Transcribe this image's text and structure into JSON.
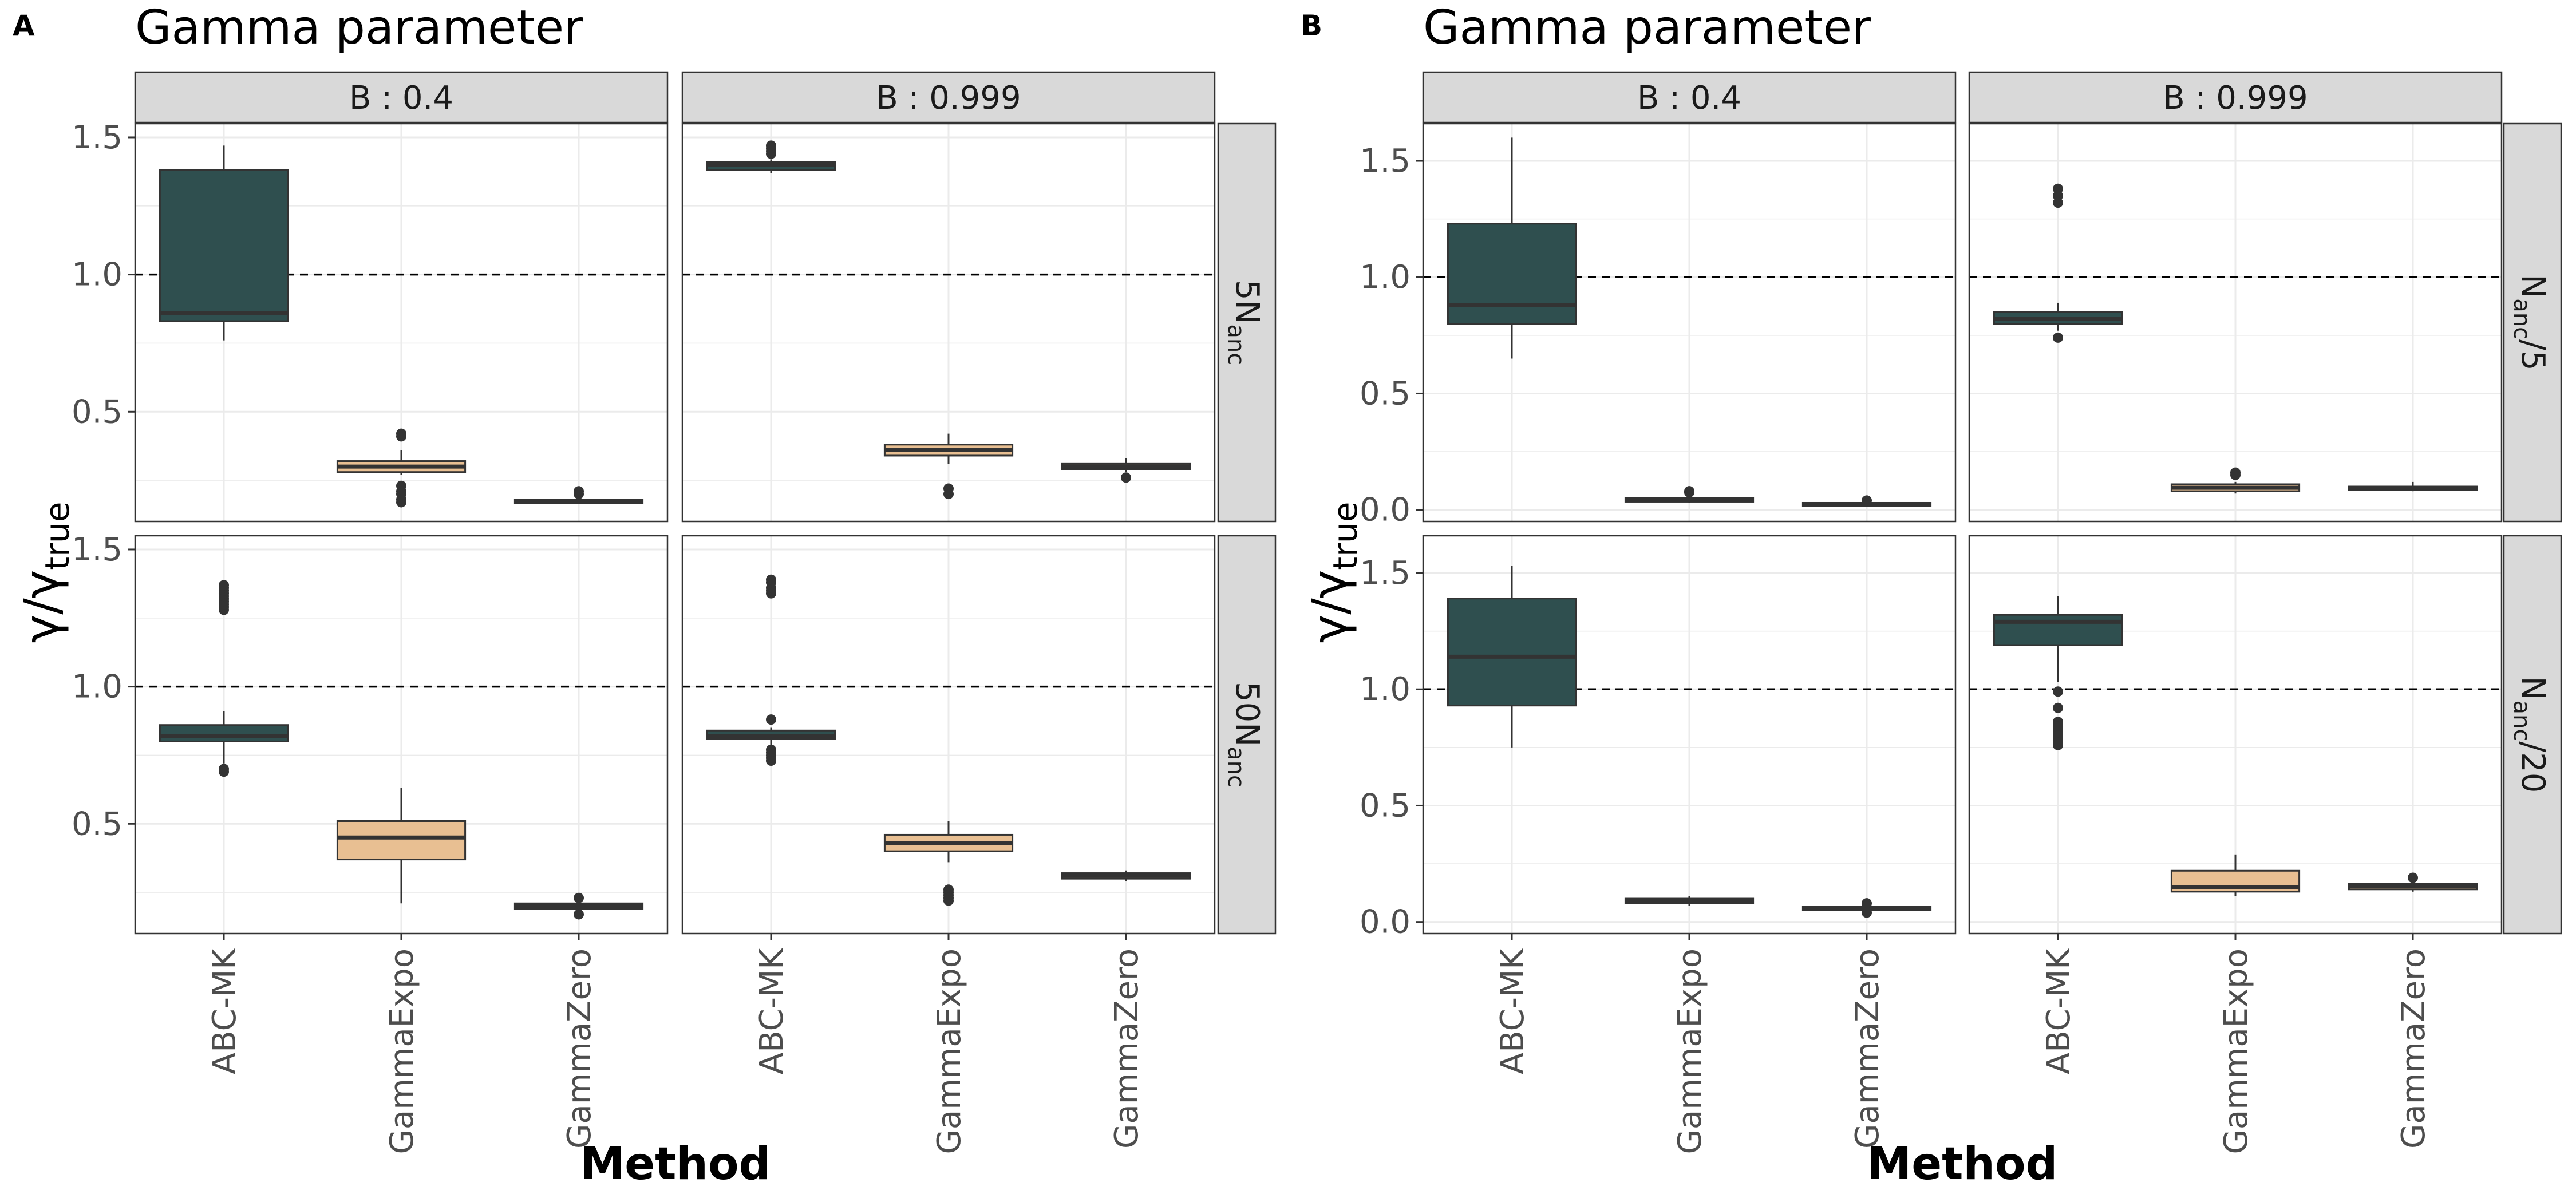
{
  "colors": {
    "abc": "#2F4F4F",
    "expo": "#E8BF92",
    "zero": "#E8BF92",
    "strip_bg": "#D9D9D9",
    "grid": "#EBEBEB",
    "border": "#333333"
  },
  "chart_data": [
    {
      "panel_label": "A",
      "title": "Gamma parameter",
      "type": "boxplot",
      "xlabel": "Method",
      "ylabel": {
        "main": "γ/γ",
        "sub": "true"
      },
      "categories": [
        "ABC-MK",
        "GammaExpo",
        "GammaZero"
      ],
      "columns": [
        "B : 0.4",
        "B : 0.999"
      ],
      "rows": [
        {
          "label": "5N",
          "sub": "anc"
        },
        {
          "label": "50N",
          "sub": "anc"
        }
      ],
      "ylim": [
        0.1,
        1.55
      ],
      "yticks": [
        0.5,
        1.0,
        1.5
      ],
      "ytick_labels": [
        "0.5",
        "1.0",
        "1.5"
      ],
      "reference_line": 1.0,
      "facets": [
        {
          "col": 0,
          "row": 0,
          "boxes": [
            {
              "method": "ABC-MK",
              "q1": 0.83,
              "median": 0.86,
              "q3": 1.38,
              "wlo": 0.76,
              "whi": 1.47,
              "outliers": []
            },
            {
              "method": "GammaExpo",
              "q1": 0.28,
              "median": 0.3,
              "q3": 0.32,
              "wlo": 0.27,
              "whi": 0.36,
              "outliers": [
                0.41,
                0.42,
                0.23,
                0.21,
                0.2,
                0.18,
                0.17
              ]
            },
            {
              "method": "GammaZero",
              "q1": 0.17,
              "median": 0.175,
              "q3": 0.18,
              "wlo": 0.165,
              "whi": 0.19,
              "outliers": [
                0.2,
                0.21
              ]
            }
          ]
        },
        {
          "col": 1,
          "row": 0,
          "boxes": [
            {
              "method": "ABC-MK",
              "q1": 1.38,
              "median": 1.4,
              "q3": 1.41,
              "wlo": 1.37,
              "whi": 1.42,
              "outliers": [
                1.44,
                1.45,
                1.46,
                1.47
              ]
            },
            {
              "method": "GammaExpo",
              "q1": 0.34,
              "median": 0.36,
              "q3": 0.38,
              "wlo": 0.31,
              "whi": 0.42,
              "outliers": [
                0.22,
                0.2
              ]
            },
            {
              "method": "GammaZero",
              "q1": 0.29,
              "median": 0.3,
              "q3": 0.31,
              "wlo": 0.28,
              "whi": 0.33,
              "outliers": [
                0.26
              ]
            }
          ]
        },
        {
          "col": 0,
          "row": 1,
          "boxes": [
            {
              "method": "ABC-MK",
              "q1": 0.8,
              "median": 0.82,
              "q3": 0.86,
              "wlo": 0.72,
              "whi": 0.91,
              "outliers": [
                1.28,
                1.29,
                1.3,
                1.31,
                1.32,
                1.33,
                1.34,
                1.35,
                1.36,
                1.37,
                0.7,
                0.69
              ]
            },
            {
              "method": "GammaExpo",
              "q1": 0.37,
              "median": 0.45,
              "q3": 0.51,
              "wlo": 0.21,
              "whi": 0.63,
              "outliers": []
            },
            {
              "method": "GammaZero",
              "q1": 0.19,
              "median": 0.2,
              "q3": 0.21,
              "wlo": 0.185,
              "whi": 0.22,
              "outliers": [
                0.17,
                0.23
              ]
            }
          ]
        },
        {
          "col": 1,
          "row": 1,
          "boxes": [
            {
              "method": "ABC-MK",
              "q1": 0.81,
              "median": 0.82,
              "q3": 0.84,
              "wlo": 0.78,
              "whi": 0.85,
              "outliers": [
                1.34,
                1.35,
                1.36,
                1.38,
                1.39,
                0.88,
                0.77,
                0.76,
                0.75,
                0.74,
                0.73
              ]
            },
            {
              "method": "GammaExpo",
              "q1": 0.4,
              "median": 0.43,
              "q3": 0.46,
              "wlo": 0.36,
              "whi": 0.51,
              "outliers": [
                0.26,
                0.25,
                0.24,
                0.23,
                0.22
              ]
            },
            {
              "method": "GammaZero",
              "q1": 0.3,
              "median": 0.31,
              "q3": 0.32,
              "wlo": 0.29,
              "whi": 0.33,
              "outliers": []
            }
          ]
        }
      ]
    },
    {
      "panel_label": "B",
      "title": "Gamma parameter",
      "type": "boxplot",
      "xlabel": "Method",
      "ylabel": {
        "main": "γ/γ",
        "sub": "true"
      },
      "categories": [
        "ABC-MK",
        "GammaExpo",
        "GammaZero"
      ],
      "columns": [
        "B : 0.4",
        "B : 0.999"
      ],
      "rows": [
        {
          "label": "N",
          "sub": "anc",
          "suffix": "/5"
        },
        {
          "label": "N",
          "sub": "anc",
          "suffix": "/20"
        }
      ],
      "ylim": [
        -0.05,
        1.66
      ],
      "yticks": [
        0.0,
        0.5,
        1.0,
        1.5
      ],
      "ytick_labels": [
        "0.0",
        "0.5",
        "1.0",
        "1.5"
      ],
      "reference_line": 1.0,
      "facets": [
        {
          "col": 0,
          "row": 0,
          "boxes": [
            {
              "method": "ABC-MK",
              "q1": 0.8,
              "median": 0.88,
              "q3": 1.23,
              "wlo": 0.65,
              "whi": 1.6,
              "outliers": []
            },
            {
              "method": "GammaExpo",
              "q1": 0.035,
              "median": 0.045,
              "q3": 0.05,
              "wlo": 0.03,
              "whi": 0.06,
              "outliers": [
                0.075,
                0.08
              ]
            },
            {
              "method": "GammaZero",
              "q1": 0.02,
              "median": 0.025,
              "q3": 0.03,
              "wlo": 0.015,
              "whi": 0.035,
              "outliers": [
                0.04
              ]
            }
          ]
        },
        {
          "col": 1,
          "row": 0,
          "boxes": [
            {
              "method": "ABC-MK",
              "q1": 0.8,
              "median": 0.82,
              "q3": 0.85,
              "wlo": 0.77,
              "whi": 0.89,
              "outliers": [
                1.38,
                1.35,
                1.32,
                0.74
              ]
            },
            {
              "method": "GammaExpo",
              "q1": 0.08,
              "median": 0.095,
              "q3": 0.11,
              "wlo": 0.07,
              "whi": 0.12,
              "outliers": [
                0.15,
                0.16
              ]
            },
            {
              "method": "GammaZero",
              "q1": 0.09,
              "median": 0.095,
              "q3": 0.1,
              "wlo": 0.08,
              "whi": 0.12,
              "outliers": []
            }
          ]
        },
        {
          "col": 0,
          "row": 1,
          "boxes": [
            {
              "method": "ABC-MK",
              "q1": 0.93,
              "median": 1.14,
              "q3": 1.39,
              "wlo": 0.75,
              "whi": 1.53,
              "outliers": []
            },
            {
              "method": "GammaExpo",
              "q1": 0.08,
              "median": 0.09,
              "q3": 0.1,
              "wlo": 0.07,
              "whi": 0.11,
              "outliers": []
            },
            {
              "method": "GammaZero",
              "q1": 0.05,
              "median": 0.06,
              "q3": 0.065,
              "wlo": 0.045,
              "whi": 0.07,
              "outliers": [
                0.08,
                0.04
              ]
            }
          ]
        },
        {
          "col": 1,
          "row": 1,
          "boxes": [
            {
              "method": "ABC-MK",
              "q1": 1.19,
              "median": 1.29,
              "q3": 1.32,
              "wlo": 1.03,
              "whi": 1.4,
              "outliers": [
                0.99,
                0.92,
                0.86,
                0.84,
                0.82,
                0.8,
                0.78,
                0.77,
                0.76
              ]
            },
            {
              "method": "GammaExpo",
              "q1": 0.13,
              "median": 0.15,
              "q3": 0.22,
              "wlo": 0.11,
              "whi": 0.29,
              "outliers": []
            },
            {
              "method": "GammaZero",
              "q1": 0.14,
              "median": 0.155,
              "q3": 0.165,
              "wlo": 0.13,
              "whi": 0.18,
              "outliers": [
                0.19
              ]
            }
          ]
        }
      ]
    }
  ]
}
